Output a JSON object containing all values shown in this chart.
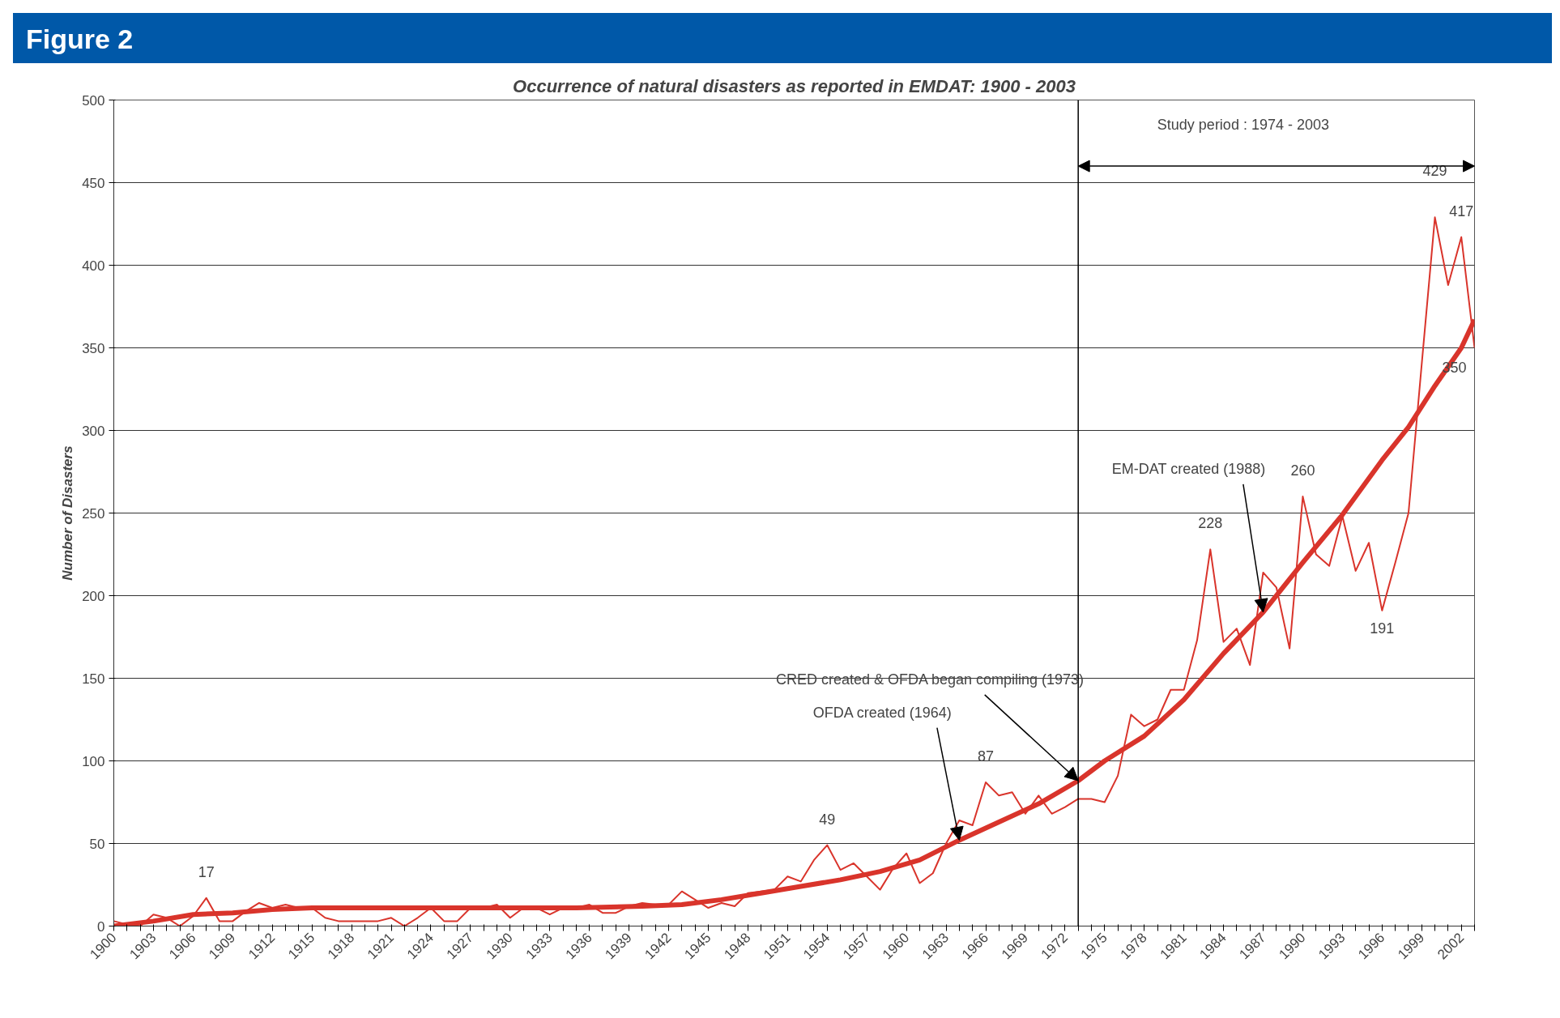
{
  "chart_data": {
    "type": "line",
    "title": "Figure 2",
    "subtitle": "Occurrence of natural disasters as reported in EMDAT: 1900 - 2003",
    "ylabel": "Number of Disasters",
    "x": [
      1900,
      1901,
      1902,
      1903,
      1904,
      1905,
      1906,
      1907,
      1908,
      1909,
      1910,
      1911,
      1912,
      1913,
      1914,
      1915,
      1916,
      1917,
      1918,
      1919,
      1920,
      1921,
      1922,
      1923,
      1924,
      1925,
      1926,
      1927,
      1928,
      1929,
      1930,
      1931,
      1932,
      1933,
      1934,
      1935,
      1936,
      1937,
      1938,
      1939,
      1940,
      1941,
      1942,
      1943,
      1944,
      1945,
      1946,
      1947,
      1948,
      1949,
      1950,
      1951,
      1952,
      1953,
      1954,
      1955,
      1956,
      1957,
      1958,
      1959,
      1960,
      1961,
      1962,
      1963,
      1964,
      1965,
      1966,
      1967,
      1968,
      1969,
      1970,
      1971,
      1972,
      1973,
      1974,
      1975,
      1976,
      1977,
      1978,
      1979,
      1980,
      1981,
      1982,
      1983,
      1984,
      1985,
      1986,
      1987,
      1988,
      1989,
      1990,
      1991,
      1992,
      1993,
      1994,
      1995,
      1996,
      1997,
      1998,
      1999,
      2000,
      2001,
      2002,
      2003
    ],
    "series": [
      {
        "color": "#d9342b",
        "values": [
          3,
          1,
          0,
          7,
          5,
          0,
          6,
          17,
          3,
          3,
          9,
          14,
          11,
          13,
          11,
          11,
          5,
          3,
          3,
          3,
          3,
          5,
          0,
          5,
          11,
          3,
          3,
          11,
          11,
          13,
          5,
          11,
          11,
          7,
          11,
          11,
          13,
          8,
          8,
          12,
          14,
          13,
          13,
          21,
          16,
          11,
          14,
          12,
          20,
          21,
          22,
          30,
          27,
          40,
          49,
          34,
          38,
          30,
          22,
          35,
          44,
          26,
          32,
          50,
          64,
          61,
          87,
          79,
          81,
          68,
          79,
          68,
          72,
          77,
          77,
          75,
          91,
          128,
          121,
          125,
          143,
          143,
          173,
          228,
          172,
          180,
          158,
          214,
          205,
          168,
          260,
          225,
          218,
          248,
          215,
          232,
          191,
          220,
          250,
          340,
          429,
          388,
          417,
          350
        ],
        "value_labels": [
          null,
          null,
          null,
          null,
          null,
          null,
          null,
          "17",
          null,
          null,
          null,
          null,
          null,
          null,
          null,
          null,
          null,
          null,
          null,
          null,
          null,
          null,
          null,
          null,
          null,
          null,
          null,
          null,
          null,
          null,
          null,
          null,
          null,
          null,
          null,
          null,
          null,
          null,
          null,
          null,
          null,
          null,
          null,
          null,
          null,
          null,
          null,
          null,
          null,
          null,
          null,
          null,
          null,
          null,
          "49",
          null,
          null,
          null,
          null,
          null,
          null,
          null,
          null,
          null,
          null,
          null,
          "87",
          null,
          null,
          null,
          null,
          null,
          null,
          null,
          null,
          null,
          null,
          null,
          null,
          null,
          null,
          null,
          null,
          "228",
          null,
          null,
          null,
          null,
          null,
          null,
          "260",
          null,
          null,
          null,
          null,
          null,
          "191",
          null,
          null,
          null,
          "429",
          null,
          "417",
          "350"
        ]
      },
      {
        "color": "#d9342b",
        "x": [
          1900,
          1903,
          1906,
          1909,
          1912,
          1915,
          1920,
          1925,
          1930,
          1935,
          1940,
          1943,
          1946,
          1949,
          1952,
          1955,
          1958,
          1961,
          1964,
          1967,
          1970,
          1973,
          1975,
          1978,
          1981,
          1984,
          1987,
          1990,
          1993,
          1996,
          1998,
          2000,
          2002,
          2003
        ],
        "values": [
          0,
          3,
          7,
          8,
          10,
          11,
          11,
          11,
          11,
          11,
          12,
          13,
          16,
          20,
          24,
          28,
          33,
          40,
          52,
          63,
          74,
          88,
          100,
          115,
          137,
          165,
          190,
          220,
          249,
          282,
          302,
          327,
          350,
          367
        ]
      }
    ],
    "xlim": [
      1900,
      2003
    ],
    "xticks": [
      1900,
      {
        "value": 1901,
        "label": null
      },
      {
        "value": 1902,
        "label": null
      },
      1903,
      {
        "value": 1904,
        "label": null
      },
      {
        "value": 1905,
        "label": null
      },
      1906,
      {
        "value": 1907,
        "label": null
      },
      {
        "value": 1908,
        "label": null
      },
      1909,
      {
        "value": 1910,
        "label": null
      },
      {
        "value": 1911,
        "label": null
      },
      1912,
      {
        "value": 1913,
        "label": null
      },
      {
        "value": 1914,
        "label": null
      },
      1915,
      {
        "value": 1916,
        "label": null
      },
      {
        "value": 1917,
        "label": null
      },
      1918,
      {
        "value": 1919,
        "label": null
      },
      {
        "value": 1920,
        "label": null
      },
      1921,
      {
        "value": 1922,
        "label": null
      },
      {
        "value": 1923,
        "label": null
      },
      1924,
      {
        "value": 1925,
        "label": null
      },
      {
        "value": 1926,
        "label": null
      },
      1927,
      {
        "value": 1928,
        "label": null
      },
      {
        "value": 1929,
        "label": null
      },
      1930,
      {
        "value": 1931,
        "label": null
      },
      {
        "value": 1932,
        "label": null
      },
      1933,
      {
        "value": 1934,
        "label": null
      },
      {
        "value": 1935,
        "label": null
      },
      1936,
      {
        "value": 1937,
        "label": null
      },
      {
        "value": 1938,
        "label": null
      },
      1939,
      {
        "value": 1940,
        "label": null
      },
      {
        "value": 1941,
        "label": null
      },
      1942,
      {
        "value": 1943,
        "label": null
      },
      {
        "value": 1944,
        "label": null
      },
      1945,
      {
        "value": 1946,
        "label": null
      },
      {
        "value": 1947,
        "label": null
      },
      1948,
      {
        "value": 1949,
        "label": null
      },
      {
        "value": 1950,
        "label": null
      },
      1951,
      {
        "value": 1952,
        "label": null
      },
      {
        "value": 1953,
        "label": null
      },
      1954,
      {
        "value": 1955,
        "label": null
      },
      {
        "value": 1956,
        "label": null
      },
      1957,
      {
        "value": 1958,
        "label": null
      },
      {
        "value": 1959,
        "label": null
      },
      1960,
      {
        "value": 1961,
        "label": null
      },
      {
        "value": 1962,
        "label": null
      },
      1963,
      {
        "value": 1964,
        "label": null
      },
      {
        "value": 1965,
        "label": null
      },
      1966,
      {
        "value": 1967,
        "label": null
      },
      {
        "value": 1968,
        "label": null
      },
      1969,
      {
        "value": 1970,
        "label": null
      },
      {
        "value": 1971,
        "label": null
      },
      1972,
      {
        "value": 1973,
        "label": null
      },
      {
        "value": 1974,
        "label": null
      },
      1975,
      {
        "value": 1976,
        "label": null
      },
      {
        "value": 1977,
        "label": null
      },
      1978,
      {
        "value": 1979,
        "label": null
      },
      {
        "value": 1980,
        "label": null
      },
      1981,
      {
        "value": 1982,
        "label": null
      },
      {
        "value": 1983,
        "label": null
      },
      1984,
      {
        "value": 1985,
        "label": null
      },
      {
        "value": 1986,
        "label": null
      },
      1987,
      {
        "value": 1988,
        "label": null
      },
      {
        "value": 1989,
        "label": null
      },
      1990,
      {
        "value": 1991,
        "label": null
      },
      {
        "value": 1992,
        "label": null
      },
      1993,
      {
        "value": 1994,
        "label": null
      },
      {
        "value": 1995,
        "label": null
      },
      1996,
      {
        "value": 1997,
        "label": null
      },
      {
        "value": 1998,
        "label": null
      },
      1999,
      {
        "value": 2000,
        "label": null
      },
      {
        "value": 2001,
        "label": null
      },
      2002,
      {
        "value": 2003,
        "label": null
      }
    ],
    "ylim": [
      0,
      500
    ],
    "yticks": [
      0,
      50,
      100,
      150,
      200,
      250,
      300,
      350,
      400,
      450,
      500
    ],
    "grid": "y",
    "ref_lines": [
      {
        "axis": "x",
        "value": 1973,
        "color": "#000000"
      }
    ],
    "annotations": [
      "Study period : 1974 - 2003",
      {
        "text": "CRED created & OFDA began compiling (1973)",
        "x": 1973,
        "y": 88
      },
      {
        "text": "OFDA created (1964)",
        "x": 1964,
        "y": 52
      },
      {
        "text": "EM-DAT created (1988)",
        "x": 1987,
        "y": 190
      }
    ]
  }
}
